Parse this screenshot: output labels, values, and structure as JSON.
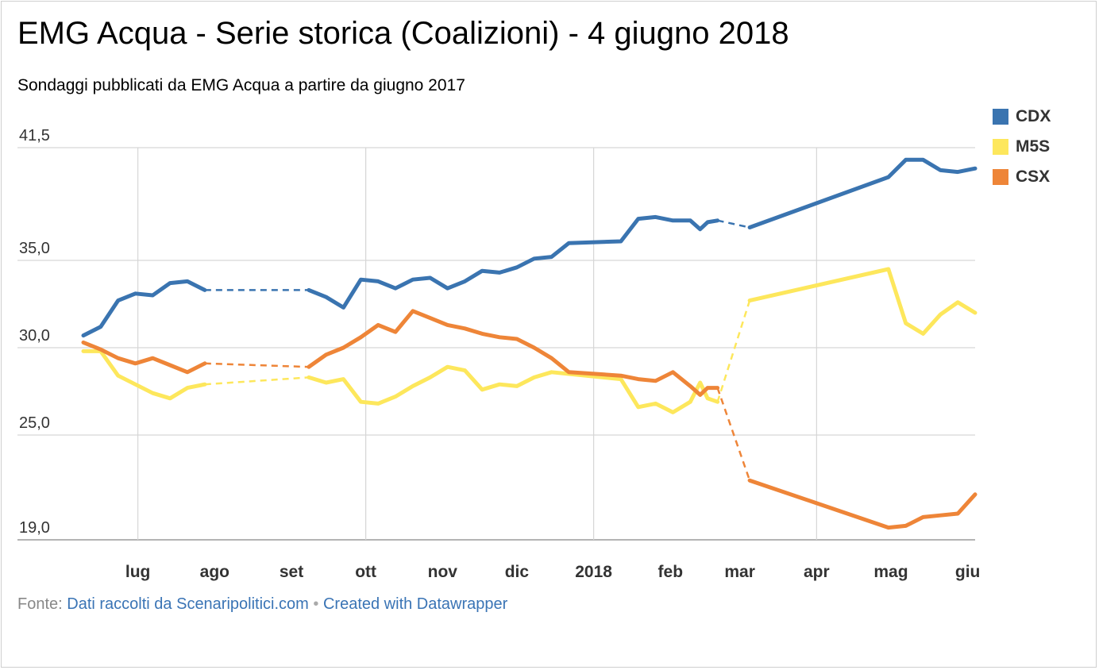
{
  "title": "EMG Acqua - Serie storica (Coalizioni) - 4 giugno 2018",
  "subtitle": "Sondaggi pubblicati da EMG Acqua a partire da giugno 2017",
  "footer": {
    "source_label": "Fonte:",
    "source_link": "Dati raccolti da Scenaripolitici.com",
    "separator": "•",
    "created_link": "Created with Datawrapper"
  },
  "chart_data": {
    "type": "line",
    "title": "EMG Acqua - Serie storica (Coalizioni) - 4 giugno 2018",
    "subtitle": "Sondaggi pubblicati da EMG Acqua a partire da giugno 2017",
    "xlabel": "",
    "ylabel": "",
    "x_axis": "date",
    "xlim": [
      "2017-06-09",
      "2018-06-04"
    ],
    "ylim": [
      19,
      41.5
    ],
    "yticks": [
      19,
      25,
      30,
      35,
      41.5
    ],
    "ytick_labels": [
      "19,0",
      "25,0",
      "30,0",
      "35,0",
      "41,5"
    ],
    "xticks": [
      "2017-07-01",
      "2017-08-01",
      "2017-09-01",
      "2017-10-01",
      "2017-11-01",
      "2017-12-01",
      "2018-01-01",
      "2018-02-01",
      "2018-03-01",
      "2018-04-01",
      "2018-05-01",
      "2018-06-01"
    ],
    "xtick_labels": [
      "lug",
      "ago",
      "set",
      "ott",
      "nov",
      "dic",
      "2018",
      "feb",
      "mar",
      "apr",
      "mag",
      "giu"
    ],
    "grid": true,
    "legend_position": "top-right",
    "gaps_drawn_dashed": true,
    "series": [
      {
        "name": "CDX",
        "color": "#3a74b0",
        "points": [
          [
            "2017-06-09",
            30.7
          ],
          [
            "2017-06-16",
            31.2
          ],
          [
            "2017-06-23",
            32.7
          ],
          [
            "2017-06-30",
            33.1
          ],
          [
            "2017-07-07",
            33.0
          ],
          [
            "2017-07-14",
            33.7
          ],
          [
            "2017-07-21",
            33.8
          ],
          [
            "2017-07-28",
            33.3
          ],
          [
            "2017-09-08",
            33.3
          ],
          [
            "2017-09-15",
            32.9
          ],
          [
            "2017-09-22",
            32.3
          ],
          [
            "2017-09-29",
            33.9
          ],
          [
            "2017-10-06",
            33.8
          ],
          [
            "2017-10-13",
            33.4
          ],
          [
            "2017-10-20",
            33.9
          ],
          [
            "2017-10-27",
            34.0
          ],
          [
            "2017-11-03",
            33.4
          ],
          [
            "2017-11-10",
            33.8
          ],
          [
            "2017-11-17",
            34.4
          ],
          [
            "2017-11-24",
            34.3
          ],
          [
            "2017-12-01",
            34.6
          ],
          [
            "2017-12-08",
            35.1
          ],
          [
            "2017-12-15",
            35.2
          ],
          [
            "2017-12-22",
            36.0
          ],
          [
            "2018-01-12",
            36.1
          ],
          [
            "2018-01-19",
            37.4
          ],
          [
            "2018-01-26",
            37.5
          ],
          [
            "2018-02-02",
            37.3
          ],
          [
            "2018-02-09",
            37.3
          ],
          [
            "2018-02-13",
            36.8
          ],
          [
            "2018-02-16",
            37.2
          ],
          [
            "2018-02-20",
            37.3
          ],
          [
            "2018-03-05",
            36.9
          ],
          [
            "2018-04-30",
            39.8
          ],
          [
            "2018-05-07",
            40.8
          ],
          [
            "2018-05-14",
            40.8
          ],
          [
            "2018-05-21",
            40.2
          ],
          [
            "2018-05-28",
            40.1
          ],
          [
            "2018-06-04",
            40.3
          ]
        ]
      },
      {
        "name": "M5S",
        "color": "#fde75c",
        "points": [
          [
            "2017-06-09",
            29.8
          ],
          [
            "2017-06-16",
            29.8
          ],
          [
            "2017-06-23",
            28.4
          ],
          [
            "2017-06-30",
            27.9
          ],
          [
            "2017-07-07",
            27.4
          ],
          [
            "2017-07-14",
            27.1
          ],
          [
            "2017-07-21",
            27.7
          ],
          [
            "2017-07-28",
            27.9
          ],
          [
            "2017-09-08",
            28.3
          ],
          [
            "2017-09-15",
            28.0
          ],
          [
            "2017-09-22",
            28.2
          ],
          [
            "2017-09-29",
            26.9
          ],
          [
            "2017-10-06",
            26.8
          ],
          [
            "2017-10-13",
            27.2
          ],
          [
            "2017-10-20",
            27.8
          ],
          [
            "2017-10-27",
            28.3
          ],
          [
            "2017-11-03",
            28.9
          ],
          [
            "2017-11-10",
            28.7
          ],
          [
            "2017-11-17",
            27.6
          ],
          [
            "2017-11-24",
            27.9
          ],
          [
            "2017-12-01",
            27.8
          ],
          [
            "2017-12-08",
            28.3
          ],
          [
            "2017-12-15",
            28.6
          ],
          [
            "2017-12-22",
            28.5
          ],
          [
            "2018-01-12",
            28.2
          ],
          [
            "2018-01-19",
            26.6
          ],
          [
            "2018-01-26",
            26.8
          ],
          [
            "2018-02-02",
            26.3
          ],
          [
            "2018-02-09",
            26.9
          ],
          [
            "2018-02-13",
            28.0
          ],
          [
            "2018-02-16",
            27.1
          ],
          [
            "2018-02-20",
            26.9
          ],
          [
            "2018-03-05",
            32.7
          ],
          [
            "2018-04-30",
            34.5
          ],
          [
            "2018-05-07",
            31.4
          ],
          [
            "2018-05-14",
            30.8
          ],
          [
            "2018-05-21",
            31.9
          ],
          [
            "2018-05-28",
            32.6
          ],
          [
            "2018-06-04",
            32.0
          ]
        ]
      },
      {
        "name": "CSX",
        "color": "#ee8538",
        "points": [
          [
            "2017-06-09",
            30.3
          ],
          [
            "2017-06-16",
            29.9
          ],
          [
            "2017-06-23",
            29.4
          ],
          [
            "2017-06-30",
            29.1
          ],
          [
            "2017-07-07",
            29.4
          ],
          [
            "2017-07-14",
            29.0
          ],
          [
            "2017-07-21",
            28.6
          ],
          [
            "2017-07-28",
            29.1
          ],
          [
            "2017-09-08",
            28.9
          ],
          [
            "2017-09-15",
            29.6
          ],
          [
            "2017-09-22",
            30.0
          ],
          [
            "2017-09-29",
            30.6
          ],
          [
            "2017-10-06",
            31.3
          ],
          [
            "2017-10-13",
            30.9
          ],
          [
            "2017-10-20",
            32.1
          ],
          [
            "2017-10-27",
            31.7
          ],
          [
            "2017-11-03",
            31.3
          ],
          [
            "2017-11-10",
            31.1
          ],
          [
            "2017-11-17",
            30.8
          ],
          [
            "2017-11-24",
            30.6
          ],
          [
            "2017-12-01",
            30.5
          ],
          [
            "2017-12-08",
            30.0
          ],
          [
            "2017-12-15",
            29.4
          ],
          [
            "2017-12-22",
            28.6
          ],
          [
            "2018-01-12",
            28.4
          ],
          [
            "2018-01-19",
            28.2
          ],
          [
            "2018-01-26",
            28.1
          ],
          [
            "2018-02-02",
            28.6
          ],
          [
            "2018-02-09",
            27.8
          ],
          [
            "2018-02-13",
            27.3
          ],
          [
            "2018-02-16",
            27.7
          ],
          [
            "2018-02-20",
            27.7
          ],
          [
            "2018-03-05",
            22.4
          ],
          [
            "2018-04-30",
            19.7
          ],
          [
            "2018-05-07",
            19.8
          ],
          [
            "2018-05-14",
            20.3
          ],
          [
            "2018-05-21",
            20.4
          ],
          [
            "2018-05-28",
            20.5
          ],
          [
            "2018-06-04",
            21.6
          ]
        ]
      }
    ],
    "gaps": [
      [
        "2017-07-28",
        "2017-09-08"
      ],
      [
        "2018-02-20",
        "2018-03-05"
      ]
    ]
  }
}
